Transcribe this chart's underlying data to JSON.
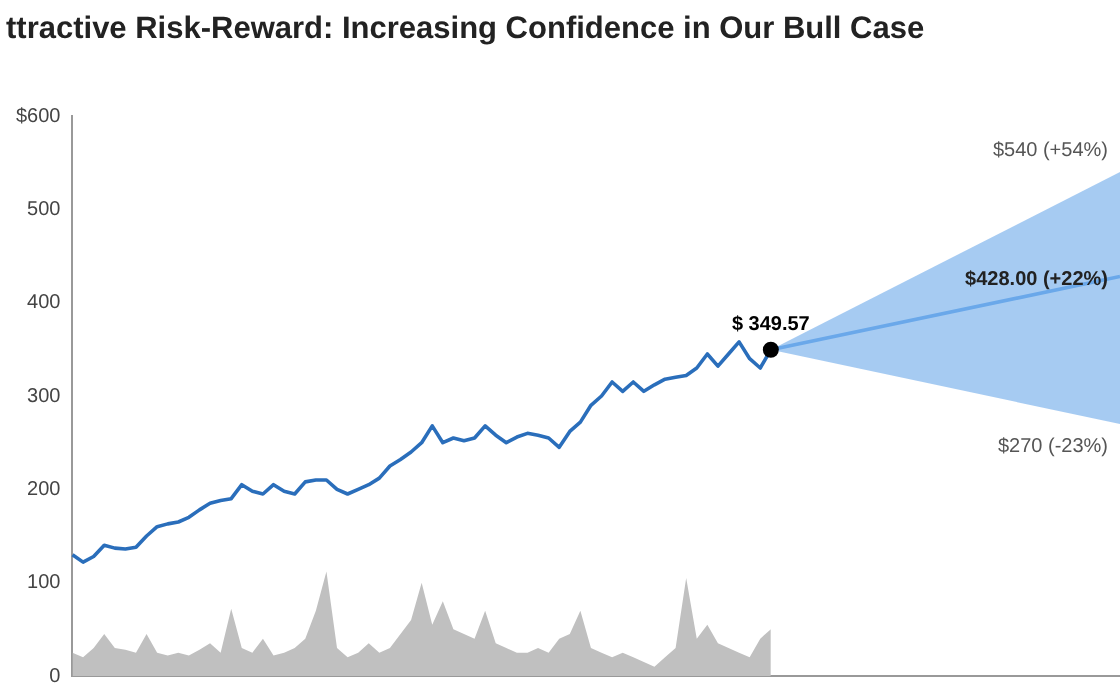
{
  "chart_data": {
    "type": "line",
    "title": "ttractive Risk-Reward: Increasing Confidence in Our Bull Case",
    "categories": [
      null,
      null,
      null,
      null,
      null,
      null,
      null,
      null,
      null,
      null,
      null,
      null,
      null,
      null,
      null,
      null,
      null,
      null,
      null,
      null,
      null,
      null,
      null,
      null,
      null,
      null,
      null,
      null,
      null,
      null,
      null,
      null,
      null,
      null,
      null,
      null,
      null,
      null,
      null,
      null,
      null,
      null,
      null,
      null,
      null,
      null,
      null,
      null,
      null,
      null,
      null,
      null,
      null,
      null,
      null,
      null,
      null,
      null,
      null,
      null,
      null,
      null,
      null,
      null,
      null,
      null,
      null,
      null,
      null,
      null,
      null,
      null,
      null,
      null,
      null,
      null,
      null,
      null,
      null,
      null,
      null,
      null,
      null,
      null,
      null,
      null,
      null,
      null,
      null,
      null,
      null,
      null,
      null,
      null,
      null,
      null,
      null,
      null,
      null,
      null
    ],
    "series": [
      {
        "type": "area",
        "color": "#c0c0c0",
        "values": [
          25,
          20,
          30,
          45,
          30,
          28,
          25,
          45,
          25,
          22,
          25,
          22,
          28,
          35,
          25,
          72,
          30,
          25,
          40,
          22,
          25,
          30,
          40,
          70,
          112,
          30,
          20,
          25,
          35,
          25,
          30,
          45,
          60,
          100,
          55,
          80,
          50,
          45,
          40,
          70,
          35,
          30,
          25,
          25,
          30,
          25,
          40,
          45,
          70,
          30,
          25,
          20,
          25,
          20,
          15,
          10,
          20,
          30,
          105,
          40,
          55,
          35,
          30,
          25,
          20,
          40,
          50,
          null,
          null,
          null,
          null,
          null,
          null,
          null,
          null,
          null,
          null,
          null,
          null,
          null,
          null,
          null,
          null,
          null,
          null,
          null,
          null,
          null,
          null,
          null,
          null,
          null,
          null,
          null,
          null,
          null,
          null,
          null,
          null,
          null
        ]
      },
      {
        "type": "line",
        "color": "#2a6ebb",
        "values": [
          130,
          122,
          128,
          140,
          137,
          136,
          138,
          150,
          160,
          163,
          165,
          170,
          178,
          185,
          188,
          190,
          205,
          198,
          195,
          205,
          198,
          195,
          208,
          210,
          210,
          200,
          195,
          200,
          205,
          212,
          225,
          232,
          240,
          250,
          268,
          250,
          255,
          252,
          255,
          268,
          258,
          250,
          256,
          260,
          258,
          255,
          245,
          262,
          272,
          290,
          300,
          315,
          305,
          315,
          305,
          312,
          318,
          320,
          322,
          330,
          345,
          332,
          345,
          358,
          340,
          330,
          349.57,
          null,
          null,
          null,
          null,
          null,
          null,
          null,
          null,
          null,
          null,
          null,
          null,
          null,
          null,
          null,
          null,
          null,
          null,
          null,
          null,
          null,
          null,
          null,
          null,
          null,
          null,
          null,
          null,
          null,
          null,
          null,
          null,
          null
        ]
      },
      {
        "type": "line",
        "color": "#6aa8ea",
        "values": [
          null,
          null,
          null,
          null,
          null,
          null,
          null,
          null,
          null,
          null,
          null,
          null,
          null,
          null,
          null,
          null,
          null,
          null,
          null,
          null,
          null,
          null,
          null,
          null,
          null,
          null,
          null,
          null,
          null,
          null,
          null,
          null,
          null,
          null,
          null,
          null,
          null,
          null,
          null,
          null,
          null,
          null,
          null,
          null,
          null,
          null,
          null,
          null,
          null,
          null,
          null,
          null,
          null,
          null,
          null,
          null,
          null,
          null,
          null,
          null,
          null,
          null,
          null,
          null,
          null,
          null,
          349.57,
          null,
          null,
          null,
          null,
          null,
          null,
          null,
          null,
          null,
          null,
          null,
          null,
          null,
          null,
          null,
          null,
          null,
          null,
          null,
          null,
          null,
          null,
          null,
          null,
          null,
          null,
          null,
          null,
          null,
          null,
          null,
          null,
          428
        ],
        "lower": [
          null,
          null,
          null,
          null,
          null,
          null,
          null,
          null,
          null,
          null,
          null,
          null,
          null,
          null,
          null,
          null,
          null,
          null,
          null,
          null,
          null,
          null,
          null,
          null,
          null,
          null,
          null,
          null,
          null,
          null,
          null,
          null,
          null,
          null,
          null,
          null,
          null,
          null,
          null,
          null,
          null,
          null,
          null,
          null,
          null,
          null,
          null,
          null,
          null,
          null,
          null,
          null,
          null,
          null,
          null,
          null,
          null,
          null,
          null,
          null,
          null,
          null,
          null,
          null,
          null,
          null,
          349.57,
          null,
          null,
          null,
          null,
          null,
          null,
          null,
          null,
          null,
          null,
          null,
          null,
          null,
          null,
          null,
          null,
          null,
          null,
          null,
          null,
          null,
          null,
          null,
          null,
          null,
          null,
          null,
          null,
          null,
          null,
          null,
          null,
          270
        ],
        "upper": [
          null,
          null,
          null,
          null,
          null,
          null,
          null,
          null,
          null,
          null,
          null,
          null,
          null,
          null,
          null,
          null,
          null,
          null,
          null,
          null,
          null,
          null,
          null,
          null,
          null,
          null,
          null,
          null,
          null,
          null,
          null,
          null,
          null,
          null,
          null,
          null,
          null,
          null,
          null,
          null,
          null,
          null,
          null,
          null,
          null,
          null,
          null,
          null,
          null,
          null,
          null,
          null,
          null,
          null,
          null,
          null,
          null,
          null,
          null,
          null,
          null,
          null,
          null,
          null,
          null,
          null,
          349.57,
          null,
          null,
          null,
          null,
          null,
          null,
          null,
          null,
          null,
          null,
          null,
          null,
          null,
          null,
          null,
          null,
          null,
          null,
          null,
          null,
          null,
          null,
          null,
          null,
          null,
          null,
          null,
          null,
          null,
          null,
          null,
          null,
          540
        ]
      }
    ],
    "ylim": [
      0,
      600
    ],
    "yticks": [
      {
        "value": 0,
        "label": "0"
      },
      {
        "value": 100,
        "label": "100"
      },
      {
        "value": 200,
        "label": "200"
      },
      {
        "value": 300,
        "label": "300"
      },
      {
        "value": 400,
        "label": "400"
      },
      {
        "value": 500,
        "label": "500"
      },
      {
        "value": 600,
        "label": "$600"
      }
    ],
    "tick_labels": "y",
    "grid": false,
    "legend": false,
    "annotations": [
      {
        "text": "$ 349.57",
        "y": 349.57
      },
      "$540 (+54%)",
      "$428.00 (+22%)",
      "$270 (-23%)"
    ]
  }
}
